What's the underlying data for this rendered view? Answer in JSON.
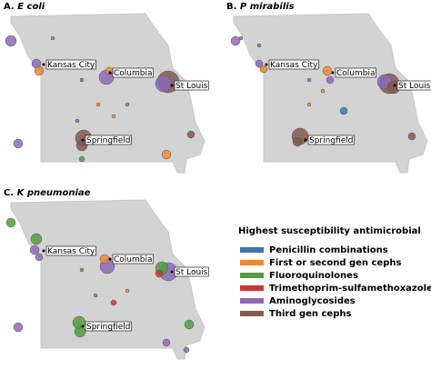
{
  "panels": [
    {
      "label": "A.",
      "organism": "E coli",
      "cities": [
        "Kansas City",
        "Columbia",
        "St Louis",
        "Springfield"
      ]
    },
    {
      "label": "B.",
      "organism": "P mirabilis",
      "cities": [
        "Kansas City",
        "Columbia",
        "St Louis",
        "Springfield"
      ]
    },
    {
      "label": "C.",
      "organism": "K pneumoniae",
      "cities": [
        "Kansas City",
        "Columbia",
        "St Louis",
        "Springfield"
      ]
    }
  ],
  "legend": {
    "title": "Highest susceptibility antimicrobial",
    "items": [
      {
        "label": "Penicillin combinations",
        "color": "#3b75af"
      },
      {
        "label": "First or second gen cephs",
        "color": "#ef8636"
      },
      {
        "label": "Fluoroquinolones",
        "color": "#519e3e"
      },
      {
        "label": "Trimethoprim-sulfamethoxazole",
        "color": "#c53a32"
      },
      {
        "label": "Aminoglycosides",
        "color": "#8d69b8"
      },
      {
        "label": "Third gen cephs",
        "color": "#84584e"
      }
    ]
  }
}
